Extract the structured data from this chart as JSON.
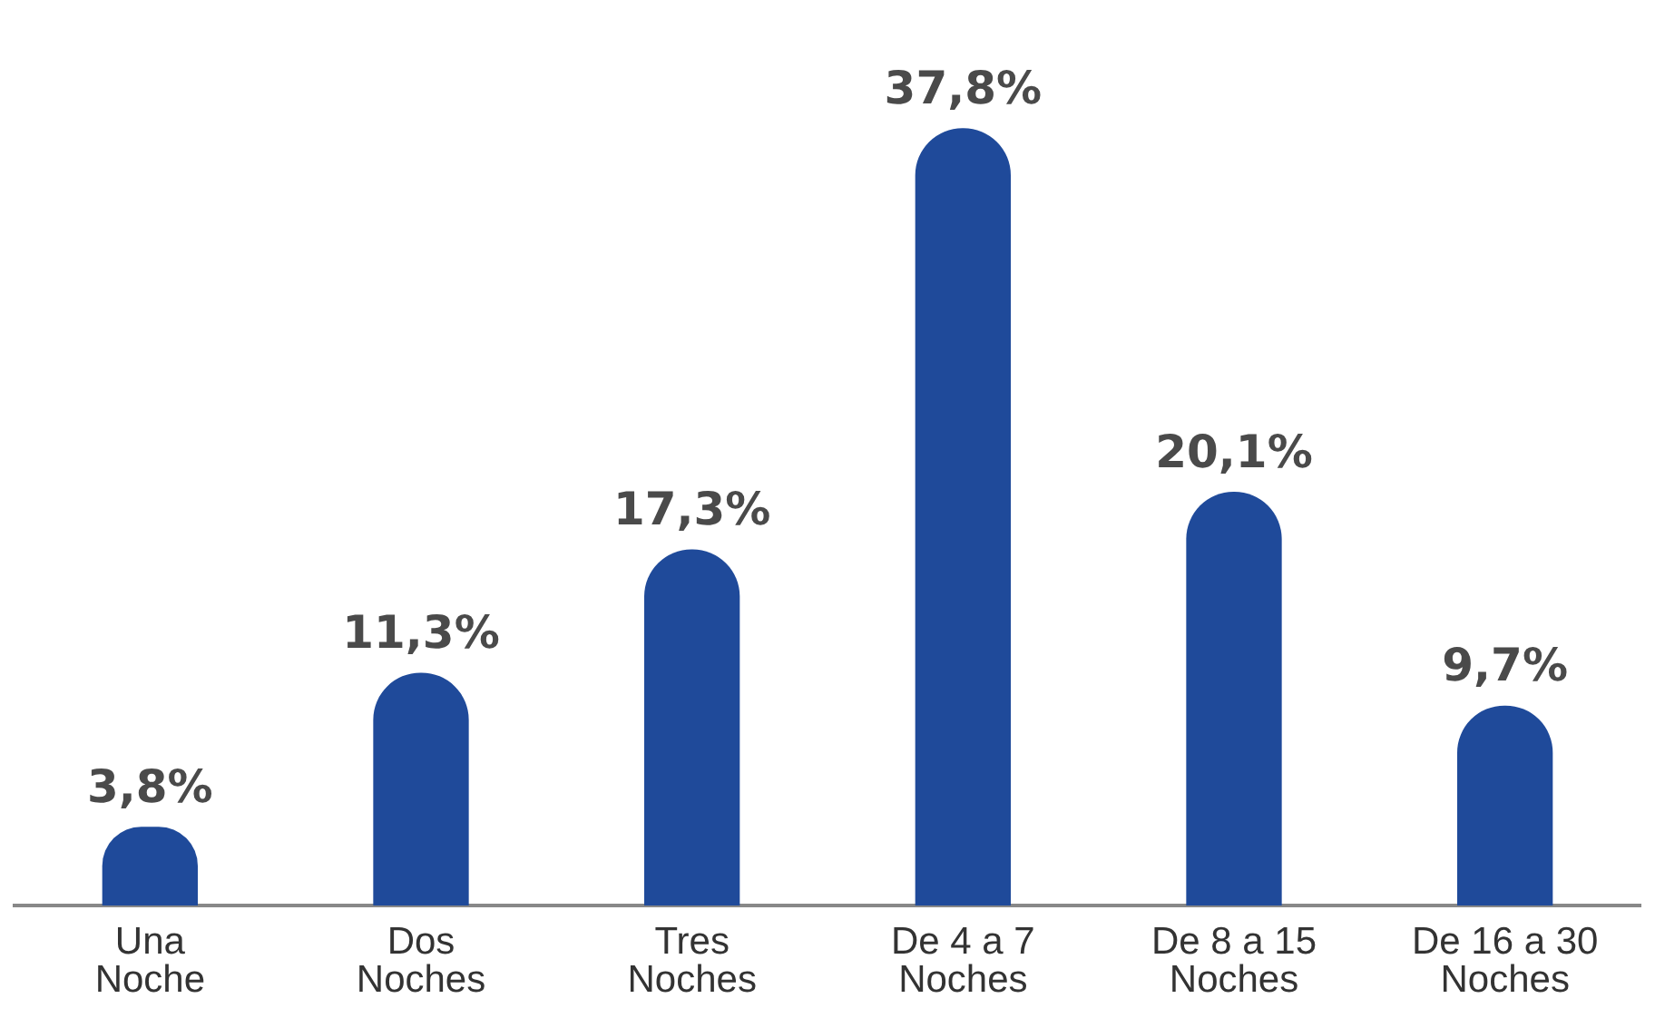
{
  "chart_data": {
    "type": "bar",
    "categories": [
      "Una Noche",
      "Dos Noches",
      "Tres Noches",
      "De 4 a 7 Noches",
      "De 8 a 15 Noches",
      "De 16 a 30 Noches"
    ],
    "values": [
      3.8,
      11.3,
      17.3,
      37.8,
      20.1,
      9.7
    ],
    "value_labels": [
      "3,8%",
      "11,3%",
      "17,3%",
      "37,8%",
      "20,1%",
      "9,7%"
    ],
    "color": "#1f4a9a",
    "grid": false,
    "legend": false
  }
}
